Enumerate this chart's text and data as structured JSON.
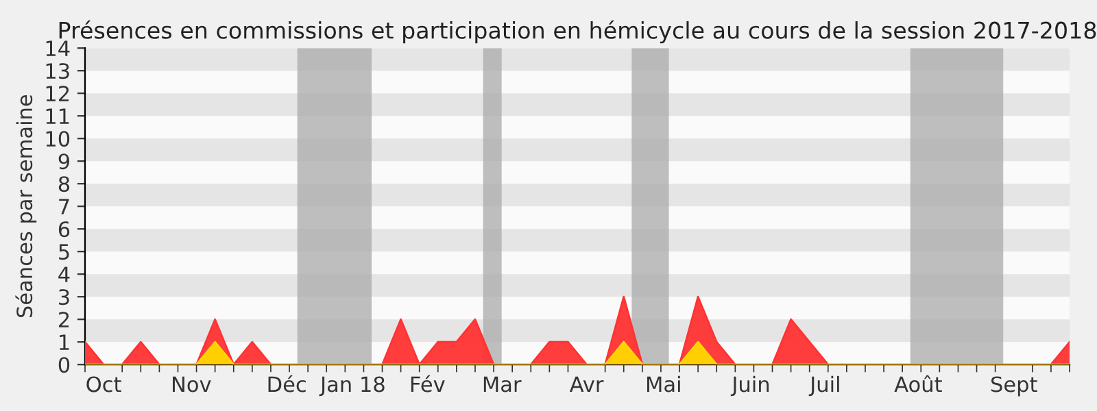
{
  "chart_data": {
    "type": "area",
    "title": "Présences en commissions et participation en hémicycle au cours de la session 2017-2018",
    "ylabel": "Séances par semaine",
    "x": [
      "2017-09-25",
      "2017-10-02",
      "2017-10-09",
      "2017-10-16",
      "2017-10-23",
      "2017-10-30",
      "2017-11-06",
      "2017-11-13",
      "2017-11-20",
      "2017-11-27",
      "2017-12-04",
      "2017-12-11",
      "2017-12-18",
      "2017-12-25",
      "2018-01-01",
      "2018-01-08",
      "2018-01-15",
      "2018-01-22",
      "2018-01-29",
      "2018-02-05",
      "2018-02-12",
      "2018-02-19",
      "2018-02-26",
      "2018-03-05",
      "2018-03-12",
      "2018-03-19",
      "2018-03-26",
      "2018-04-02",
      "2018-04-09",
      "2018-04-16",
      "2018-04-23",
      "2018-04-30",
      "2018-05-07",
      "2018-05-14",
      "2018-05-21",
      "2018-05-28",
      "2018-06-04",
      "2018-06-11",
      "2018-06-18",
      "2018-06-25",
      "2018-07-02",
      "2018-07-09",
      "2018-07-16",
      "2018-07-23",
      "2018-07-30",
      "2018-08-06",
      "2018-08-13",
      "2018-08-20",
      "2018-08-27",
      "2018-09-03",
      "2018-09-10",
      "2018-09-17",
      "2018-09-24",
      "2018-10-01"
    ],
    "series": [
      {
        "color": "#ff3333",
        "values": [
          1,
          0,
          0,
          1,
          0,
          0,
          0,
          2,
          0,
          1,
          0,
          0,
          0,
          0,
          0,
          0,
          0,
          2,
          0,
          1,
          1,
          2,
          0,
          0,
          0,
          1,
          1,
          0,
          0,
          3,
          0,
          0,
          0,
          3,
          1,
          0,
          0,
          0,
          2,
          1,
          0,
          0,
          0,
          0,
          0,
          0,
          0,
          0,
          0,
          0,
          0,
          0,
          0,
          1
        ]
      },
      {
        "color": "#ffd700",
        "values": [
          0,
          0,
          0,
          0,
          0,
          0,
          0,
          1,
          0,
          0,
          0,
          0,
          0,
          0,
          0,
          0,
          0,
          0,
          0,
          0,
          0,
          0,
          0,
          0,
          0,
          0,
          0,
          0,
          0,
          1,
          0,
          0,
          0,
          1,
          0,
          0,
          0,
          0,
          0,
          0,
          0,
          0,
          0,
          0,
          0,
          0,
          0,
          0,
          0,
          0,
          0,
          0,
          0,
          0
        ]
      }
    ],
    "xlim": [
      "2017-09-25",
      "2018-10-01"
    ],
    "ylim": [
      0,
      14
    ],
    "yticks": [
      0,
      1,
      2,
      3,
      4,
      5,
      6,
      7,
      8,
      9,
      10,
      11,
      12,
      13,
      14
    ],
    "xticks": [
      {
        "value": "2017-10-02",
        "label": "Oct"
      },
      {
        "value": "2017-11-04",
        "label": "Nov"
      },
      {
        "value": "2017-12-10",
        "label": "Déc"
      },
      {
        "value": "2018-01-04",
        "label": "Jan 18"
      },
      {
        "value": "2018-02-01",
        "label": "Fév"
      },
      {
        "value": "2018-03-01",
        "label": "Mar"
      },
      {
        "value": "2018-04-02",
        "label": "Avr"
      },
      {
        "value": "2018-05-01",
        "label": "Mai"
      },
      {
        "value": "2018-06-03",
        "label": "Juin"
      },
      {
        "value": "2018-07-01",
        "label": "Juil"
      },
      {
        "value": "2018-08-05",
        "label": "Août"
      },
      {
        "value": "2018-09-10",
        "label": "Sept"
      }
    ],
    "bands": [
      {
        "axis": "y",
        "from": 1,
        "to": 2,
        "color": "#e5e5e5"
      },
      {
        "axis": "y",
        "from": 3,
        "to": 4,
        "color": "#e5e5e5"
      },
      {
        "axis": "y",
        "from": 5,
        "to": 6,
        "color": "#e5e5e5"
      },
      {
        "axis": "y",
        "from": 7,
        "to": 8,
        "color": "#e5e5e5"
      },
      {
        "axis": "y",
        "from": 9,
        "to": 10,
        "color": "#e5e5e5"
      },
      {
        "axis": "y",
        "from": 11,
        "to": 12,
        "color": "#e5e5e5"
      },
      {
        "axis": "y",
        "from": 13,
        "to": 14,
        "color": "#e5e5e5"
      },
      {
        "axis": "x",
        "from": "2017-12-14",
        "to": "2018-01-11",
        "color": "#aaaaaa"
      },
      {
        "axis": "x",
        "from": "2018-02-22",
        "to": "2018-03-01",
        "color": "#aaaaaa"
      },
      {
        "axis": "x",
        "from": "2018-04-19",
        "to": "2018-05-03",
        "color": "#aaaaaa"
      },
      {
        "axis": "x",
        "from": "2018-08-02",
        "to": "2018-09-06",
        "color": "#aaaaaa"
      }
    ]
  }
}
